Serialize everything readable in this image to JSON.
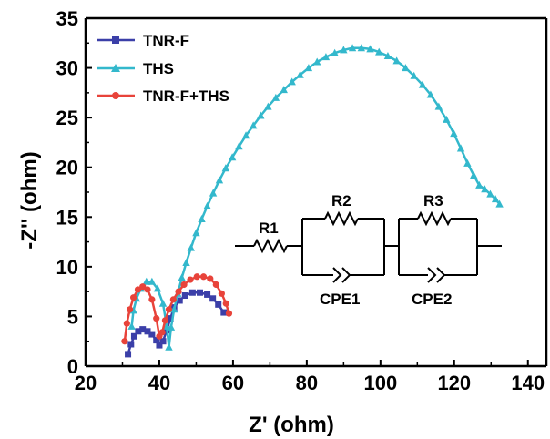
{
  "chart_data": {
    "type": "scatter",
    "title": "",
    "xlabel": "Z' (ohm)",
    "ylabel": "-Z'' (ohm)",
    "xlim": [
      20,
      145
    ],
    "ylim": [
      0,
      35
    ],
    "xticks": [
      20,
      40,
      60,
      80,
      100,
      120,
      140
    ],
    "yticks": [
      0,
      5,
      10,
      15,
      20,
      25,
      30,
      35
    ],
    "grid": false,
    "legend_position": "top-left",
    "series": [
      {
        "name": "TNR-F",
        "color": "#3b3fa8",
        "marker": "square",
        "points": [
          [
            31.5,
            1.2
          ],
          [
            32.3,
            2.2
          ],
          [
            33.2,
            3.0
          ],
          [
            34.3,
            3.5
          ],
          [
            35.5,
            3.7
          ],
          [
            36.8,
            3.5
          ],
          [
            38.0,
            3.2
          ],
          [
            39.2,
            2.6
          ],
          [
            40.0,
            2.1
          ],
          [
            41.0,
            2.5
          ],
          [
            42.0,
            3.6
          ],
          [
            43.0,
            4.8
          ],
          [
            44.0,
            5.9
          ],
          [
            45.5,
            6.6
          ],
          [
            47.0,
            7.1
          ],
          [
            49.0,
            7.4
          ],
          [
            51.0,
            7.4
          ],
          [
            53.0,
            7.2
          ],
          [
            54.5,
            6.8
          ],
          [
            56.0,
            6.2
          ],
          [
            57.5,
            5.4
          ]
        ]
      },
      {
        "name": "THS",
        "color": "#33b8cc",
        "marker": "triangle",
        "points": [
          [
            32.5,
            4.0
          ],
          [
            33.0,
            5.6
          ],
          [
            33.8,
            6.8
          ],
          [
            35.0,
            7.8
          ],
          [
            36.5,
            8.5
          ],
          [
            38.0,
            8.5
          ],
          [
            39.5,
            7.8
          ],
          [
            41.0,
            6.3
          ],
          [
            42.0,
            4.0
          ],
          [
            42.6,
            1.9
          ],
          [
            43.2,
            3.9
          ],
          [
            44.0,
            5.7
          ],
          [
            45.0,
            7.3
          ],
          [
            46.1,
            8.9
          ],
          [
            47.3,
            10.4
          ],
          [
            48.6,
            11.9
          ],
          [
            50.0,
            13.4
          ],
          [
            51.5,
            14.8
          ],
          [
            53.0,
            16.1
          ],
          [
            54.6,
            17.4
          ],
          [
            56.3,
            18.7
          ],
          [
            58.0,
            19.9
          ],
          [
            59.8,
            21.0
          ],
          [
            61.6,
            22.1
          ],
          [
            63.5,
            23.2
          ],
          [
            65.5,
            24.2
          ],
          [
            67.5,
            25.2
          ],
          [
            69.5,
            26.1
          ],
          [
            71.6,
            27.0
          ],
          [
            73.8,
            27.8
          ],
          [
            76.0,
            28.6
          ],
          [
            78.2,
            29.3
          ],
          [
            80.5,
            30.0
          ],
          [
            82.8,
            30.6
          ],
          [
            85.2,
            31.1
          ],
          [
            87.6,
            31.5
          ],
          [
            90.0,
            31.8
          ],
          [
            92.4,
            32.0
          ],
          [
            94.8,
            32.0
          ],
          [
            97.2,
            31.9
          ],
          [
            99.6,
            31.6
          ],
          [
            102.0,
            31.2
          ],
          [
            104.4,
            30.7
          ],
          [
            106.8,
            30.0
          ],
          [
            109.1,
            29.2
          ],
          [
            111.4,
            28.3
          ],
          [
            113.6,
            27.3
          ],
          [
            115.8,
            26.1
          ],
          [
            117.9,
            24.8
          ],
          [
            119.9,
            23.4
          ],
          [
            121.8,
            21.9
          ],
          [
            123.6,
            20.4
          ],
          [
            125.3,
            19.2
          ],
          [
            126.8,
            18.2
          ],
          [
            128.3,
            17.8
          ],
          [
            129.8,
            17.3
          ],
          [
            131.2,
            16.8
          ],
          [
            132.3,
            16.3
          ]
        ]
      },
      {
        "name": "TNR-F+THS",
        "color": "#e8433a",
        "marker": "circle",
        "points": [
          [
            30.6,
            2.5
          ],
          [
            31.2,
            4.3
          ],
          [
            32.0,
            5.7
          ],
          [
            33.0,
            6.9
          ],
          [
            34.2,
            7.7
          ],
          [
            35.5,
            8.0
          ],
          [
            36.8,
            7.7
          ],
          [
            38.0,
            6.7
          ],
          [
            39.2,
            4.8
          ],
          [
            40.0,
            3.0
          ],
          [
            40.8,
            3.4
          ],
          [
            41.6,
            4.6
          ],
          [
            42.6,
            5.7
          ],
          [
            43.8,
            6.7
          ],
          [
            45.2,
            7.5
          ],
          [
            46.7,
            8.2
          ],
          [
            48.4,
            8.7
          ],
          [
            50.2,
            9.0
          ],
          [
            52.0,
            9.0
          ],
          [
            53.8,
            8.8
          ],
          [
            55.4,
            8.2
          ],
          [
            56.9,
            7.3
          ],
          [
            58.1,
            6.3
          ],
          [
            58.9,
            5.3
          ]
        ]
      }
    ],
    "inset": {
      "type": "equivalent-circuit",
      "labels": [
        "R1",
        "R2",
        "R3",
        "CPE1",
        "CPE2"
      ]
    }
  }
}
